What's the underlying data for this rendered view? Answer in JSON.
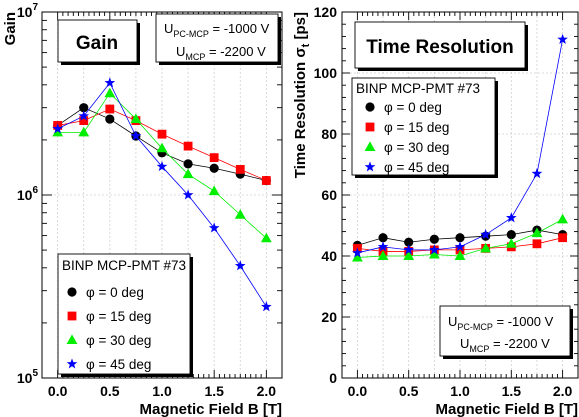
{
  "chart_data": [
    {
      "type": "line",
      "title": "Gain",
      "xlabel": "Magnetic Field B  [T]",
      "ylabel": "Gain",
      "yscale": "log",
      "xlim": [
        -0.15,
        2.15
      ],
      "ylim": [
        100000,
        10000000
      ],
      "x_ticks": [
        "0.0",
        "0.5",
        "1.0",
        "1.5",
        "2.0"
      ],
      "y_ticks": [
        {
          "base": "10",
          "exp": "5",
          "value": 100000
        },
        {
          "base": "10",
          "exp": "6",
          "value": 1000000
        },
        {
          "base": "10",
          "exp": "7",
          "value": 10000000
        }
      ],
      "conditions": {
        "line1": {
          "prefix": "U",
          "sub": "PC-MCP",
          "suffix": " = -1000 V"
        },
        "line2": {
          "prefix": "U",
          "sub": "MCP",
          "suffix": " = -2200 V"
        }
      },
      "legend_title": "BINP MCP-PMT #73",
      "legend_position": "bottom-left",
      "grid": true,
      "x": [
        0.0,
        0.25,
        0.5,
        0.75,
        1.0,
        1.25,
        1.5,
        1.75,
        2.0
      ],
      "series": [
        {
          "name": "φ = 0 deg",
          "marker": "circle",
          "color": "#000000",
          "values": [
            2400000,
            3000000,
            2600000,
            2100000,
            1700000,
            1480000,
            1400000,
            1300000,
            1200000
          ]
        },
        {
          "name": "φ = 15 deg",
          "marker": "square",
          "color": "#ff0000",
          "values": [
            2400000,
            2550000,
            2950000,
            2550000,
            2150000,
            1850000,
            1600000,
            1380000,
            1200000
          ]
        },
        {
          "name": "φ = 30 deg",
          "marker": "triangle",
          "color": "#00ee00",
          "values": [
            2200000,
            2200000,
            3600000,
            2600000,
            1800000,
            1300000,
            1050000,
            780000,
            580000
          ]
        },
        {
          "name": "φ = 45 deg",
          "marker": "star",
          "color": "#0000ff",
          "values": [
            2300000,
            2700000,
            4100000,
            2100000,
            1430000,
            1000000,
            660000,
            410000,
            245000
          ]
        }
      ]
    },
    {
      "type": "line",
      "title": "Time Resolution",
      "xlabel": "Magnetic Field B  [T]",
      "ylabel": "Time Resolution σt  [ps]",
      "xlim": [
        -0.15,
        2.15
      ],
      "ylim": [
        0,
        120
      ],
      "x_ticks": [
        "0.0",
        "0.5",
        "1.0",
        "1.5",
        "2.0"
      ],
      "y_ticks": [
        "0",
        "20",
        "40",
        "60",
        "80",
        "100",
        "120"
      ],
      "ylabel_parts": {
        "main": "Time Resolution σ",
        "sub": "t",
        "unit": "[ps]"
      },
      "conditions": {
        "line1": {
          "prefix": "U",
          "sub": "PC-MCP",
          "suffix": " = -1000 V"
        },
        "line2": {
          "prefix": "U",
          "sub": "MCP",
          "suffix": " = -2200 V"
        }
      },
      "legend_title": "BINP MCP-PMT #73",
      "legend_position": "top-left",
      "grid": true,
      "x": [
        0.0,
        0.25,
        0.5,
        0.75,
        1.0,
        1.25,
        1.5,
        1.75,
        2.0
      ],
      "series": [
        {
          "name": "φ = 0 deg",
          "marker": "circle",
          "color": "#000000",
          "values": [
            43.5,
            46,
            44.5,
            45.5,
            46,
            46.5,
            47,
            48.5,
            47
          ]
        },
        {
          "name": "φ = 15 deg",
          "marker": "square",
          "color": "#ff0000",
          "values": [
            42.5,
            41.5,
            41.5,
            42,
            42,
            42.5,
            43,
            44,
            46
          ]
        },
        {
          "name": "φ = 30 deg",
          "marker": "triangle",
          "color": "#00ee00",
          "values": [
            39.5,
            40,
            40,
            40.5,
            40,
            42.5,
            44,
            47.5,
            52
          ]
        },
        {
          "name": "φ = 45 deg",
          "marker": "star",
          "color": "#0000ff",
          "values": [
            41,
            43,
            42,
            42,
            43,
            47,
            52.5,
            67,
            111
          ]
        }
      ]
    }
  ]
}
